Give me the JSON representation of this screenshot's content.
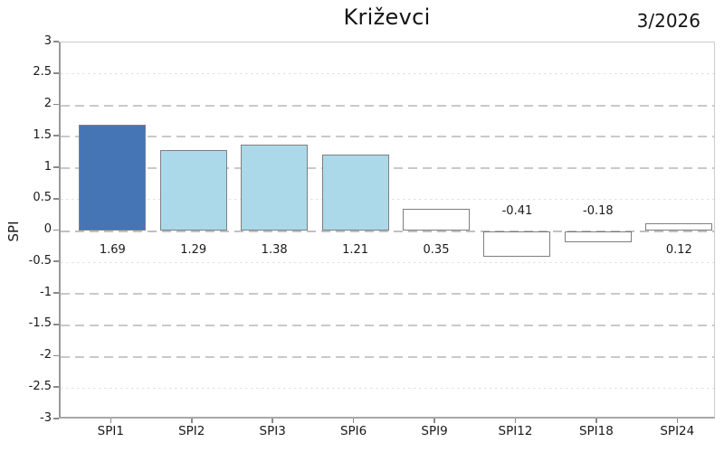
{
  "title": "Križevci",
  "period": "3/2026",
  "chart_data": {
    "type": "bar",
    "title": "Križevci",
    "annotation": "3/2026",
    "ylabel": "SPI",
    "xlabel": "",
    "categories": [
      "SPI1",
      "SPI2",
      "SPI3",
      "SPI6",
      "SPI9",
      "SPI12",
      "SPI18",
      "SPI24"
    ],
    "values": [
      1.69,
      1.29,
      1.38,
      1.21,
      0.35,
      -0.41,
      -0.18,
      0.12
    ],
    "value_labels": [
      "1.69",
      "1.29",
      "1.38",
      "1.21",
      "0.35",
      "-0.41",
      "-0.18",
      "0.12"
    ],
    "bar_colors": [
      "#4575b4",
      "#abd9e9",
      "#abd9e9",
      "#abd9e9",
      "#ffffff",
      "#ffffff",
      "#ffffff",
      "#ffffff"
    ],
    "bar_edge_color": "#7f7f7f",
    "ylim": [
      -3,
      3
    ],
    "ytick_values": [
      3,
      2.5,
      2,
      1.5,
      1,
      0.5,
      0,
      -0.5,
      -1,
      -1.5,
      -2,
      -2.5,
      -3
    ],
    "ytick_labels": [
      "3",
      "2.5",
      "2",
      "1.5",
      "1",
      "0.5",
      "0",
      "-0.5",
      "-1",
      "-1.5",
      "-2",
      "-2.5",
      "-3"
    ],
    "major_gridlines": [
      2,
      1.5,
      1,
      -1,
      -1.5,
      -2
    ],
    "minor_gridlines": [
      2.5,
      0.5,
      -0.5,
      -2.5
    ],
    "zero_line": 0,
    "grid": true,
    "legend_position": "none",
    "colors": {
      "strong_positive_bar": "#4575b4",
      "light_positive_bar": "#abd9e9",
      "neutral_bar": "#ffffff",
      "grid_major": "#c9c9c9",
      "grid_minor": "#e0e0e0",
      "axis": "#9a9a9a"
    }
  }
}
